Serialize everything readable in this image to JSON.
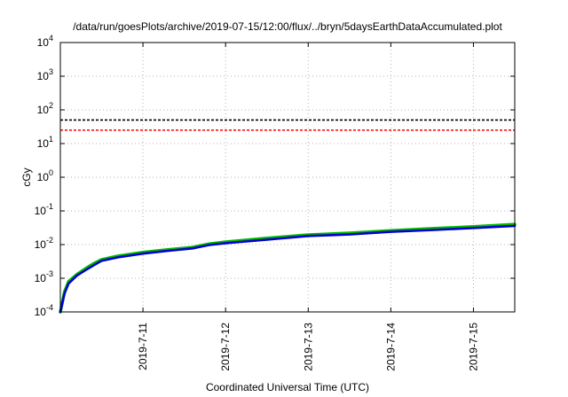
{
  "chart_data": {
    "type": "line",
    "title": "/data/run/goesPlots/archive/2019-07-15/12:00/flux/../bryn/5daysEarthDataAccumulated.plot",
    "xlabel": "Coordinated Universal Time (UTC)",
    "ylabel": "cGy",
    "yscale": "log",
    "ylim": [
      0.0001,
      10000
    ],
    "xlim": [
      "2019-07-10T00:00",
      "2019-07-15T12:00"
    ],
    "y_ticks": [
      {
        "mantissa": "10",
        "exponent": "-4"
      },
      {
        "mantissa": "10",
        "exponent": "-3"
      },
      {
        "mantissa": "10",
        "exponent": "-2"
      },
      {
        "mantissa": "10",
        "exponent": "-1"
      },
      {
        "mantissa": "10",
        "exponent": "0"
      },
      {
        "mantissa": "10",
        "exponent": "1"
      },
      {
        "mantissa": "10",
        "exponent": "2"
      },
      {
        "mantissa": "10",
        "exponent": "3"
      },
      {
        "mantissa": "10",
        "exponent": "4"
      }
    ],
    "x_ticks": [
      "2019-7-11",
      "2019-7-12",
      "2019-7-13",
      "2019-7-14",
      "2019-7-15"
    ],
    "grid": true,
    "thresholds": [
      {
        "value": 50,
        "color": "#000000",
        "style": "dashed"
      },
      {
        "value": 25,
        "color": "#ff0000",
        "style": "dashed"
      }
    ],
    "series": [
      {
        "color": "#00bb00",
        "x": [
          "2019-07-10T00:00",
          "2019-07-10T01:12",
          "2019-07-10T02:24",
          "2019-07-10T04:48",
          "2019-07-10T07:12",
          "2019-07-10T09:36",
          "2019-07-10T12:00",
          "2019-07-10T16:48",
          "2019-07-11T00:00",
          "2019-07-11T07:12",
          "2019-07-11T14:24",
          "2019-07-11T19:12",
          "2019-07-12T00:00",
          "2019-07-12T12:00",
          "2019-07-13T00:00",
          "2019-07-13T12:00",
          "2019-07-14T00:00",
          "2019-07-14T12:00",
          "2019-07-15T00:00",
          "2019-07-15T12:00"
        ],
        "y": [
          0.0001,
          0.0004,
          0.0008,
          0.0013,
          0.0019,
          0.0027,
          0.0036,
          0.0046,
          0.0059,
          0.0071,
          0.0083,
          0.0105,
          0.012,
          0.0155,
          0.0195,
          0.022,
          0.026,
          0.03,
          0.034,
          0.04
        ]
      },
      {
        "color": "#0000cc",
        "x": [
          "2019-07-10T00:00",
          "2019-07-10T01:12",
          "2019-07-10T02:24",
          "2019-07-10T04:48",
          "2019-07-10T07:12",
          "2019-07-10T09:36",
          "2019-07-10T12:00",
          "2019-07-10T16:48",
          "2019-07-11T00:00",
          "2019-07-11T07:12",
          "2019-07-11T14:24",
          "2019-07-11T19:12",
          "2019-07-12T00:00",
          "2019-07-12T12:00",
          "2019-07-13T00:00",
          "2019-07-13T12:00",
          "2019-07-14T00:00",
          "2019-07-14T12:00",
          "2019-07-15T00:00",
          "2019-07-15T12:00"
        ],
        "y": [
          0.0001,
          0.00035,
          0.0007,
          0.0012,
          0.0017,
          0.0024,
          0.0033,
          0.0042,
          0.0054,
          0.0065,
          0.0077,
          0.0097,
          0.011,
          0.014,
          0.018,
          0.02,
          0.024,
          0.027,
          0.031,
          0.036
        ]
      }
    ]
  }
}
